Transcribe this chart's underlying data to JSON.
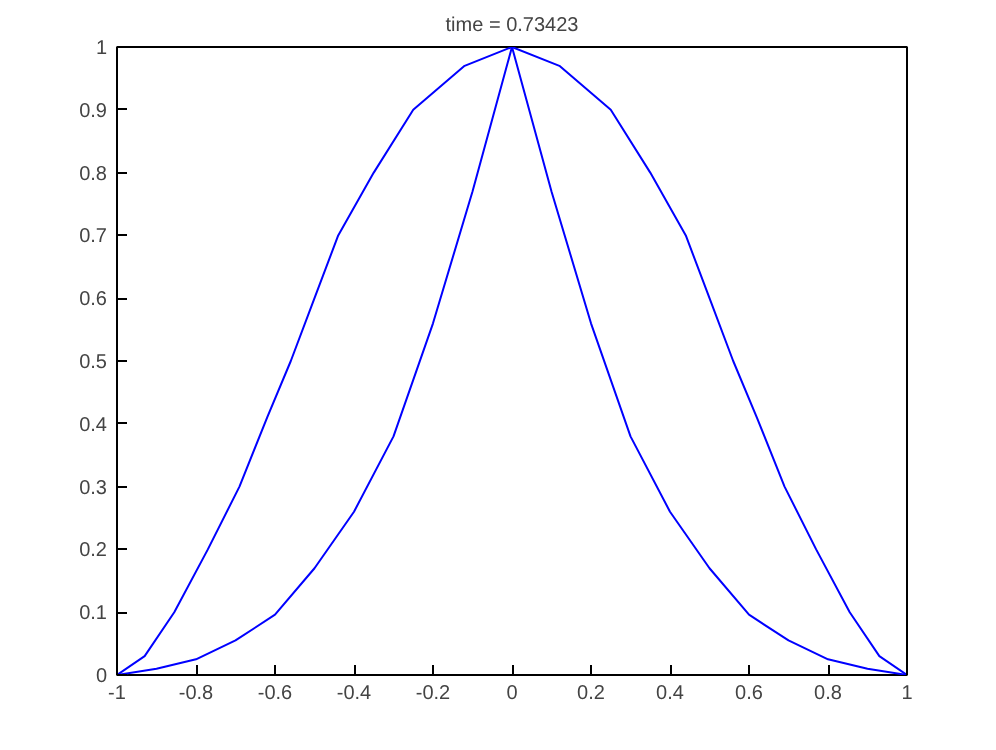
{
  "chart_data": {
    "type": "line",
    "title": "time = 0.73423",
    "xlim": [
      -1,
      1
    ],
    "ylim": [
      0,
      1
    ],
    "xticks": [
      -1,
      -0.8,
      -0.6,
      -0.4,
      -0.2,
      0,
      0.2,
      0.4,
      0.6,
      0.8,
      1
    ],
    "yticks": [
      0,
      0.1,
      0.2,
      0.3,
      0.4,
      0.5,
      0.6,
      0.7,
      0.8,
      0.9,
      1
    ],
    "grid": false,
    "marker": "none",
    "line_style": "solid",
    "series": [
      {
        "color": "#0000ff",
        "x": [
          -1,
          -0.93,
          -0.855,
          -0.77,
          -0.69,
          -0.62,
          -0.56,
          -0.5,
          -0.44,
          -0.35,
          -0.25,
          -0.12,
          0,
          0.12,
          0.25,
          0.35,
          0.44,
          0.5,
          0.56,
          0.62,
          0.69,
          0.77,
          0.855,
          0.93,
          1
        ],
        "values": [
          0,
          0.03,
          0.1,
          0.2,
          0.3,
          0.41,
          0.5,
          0.6,
          0.7,
          0.8,
          0.9,
          0.97,
          1,
          0.97,
          0.9,
          0.8,
          0.7,
          0.6,
          0.5,
          0.41,
          0.3,
          0.2,
          0.1,
          0.03,
          0
        ]
      },
      {
        "color": "#0000ff",
        "x": [
          -1,
          -0.9,
          -0.8,
          -0.7,
          -0.6,
          -0.5,
          -0.4,
          -0.3,
          -0.2,
          -0.1,
          -0.05,
          0,
          0.05,
          0.1,
          0.2,
          0.3,
          0.4,
          0.5,
          0.6,
          0.7,
          0.8,
          0.9,
          1
        ],
        "values": [
          0,
          0.01,
          0.025,
          0.055,
          0.096,
          0.17,
          0.26,
          0.38,
          0.56,
          0.77,
          0.885,
          1,
          0.885,
          0.77,
          0.56,
          0.38,
          0.26,
          0.17,
          0.096,
          0.055,
          0.025,
          0.01,
          0
        ]
      }
    ]
  }
}
